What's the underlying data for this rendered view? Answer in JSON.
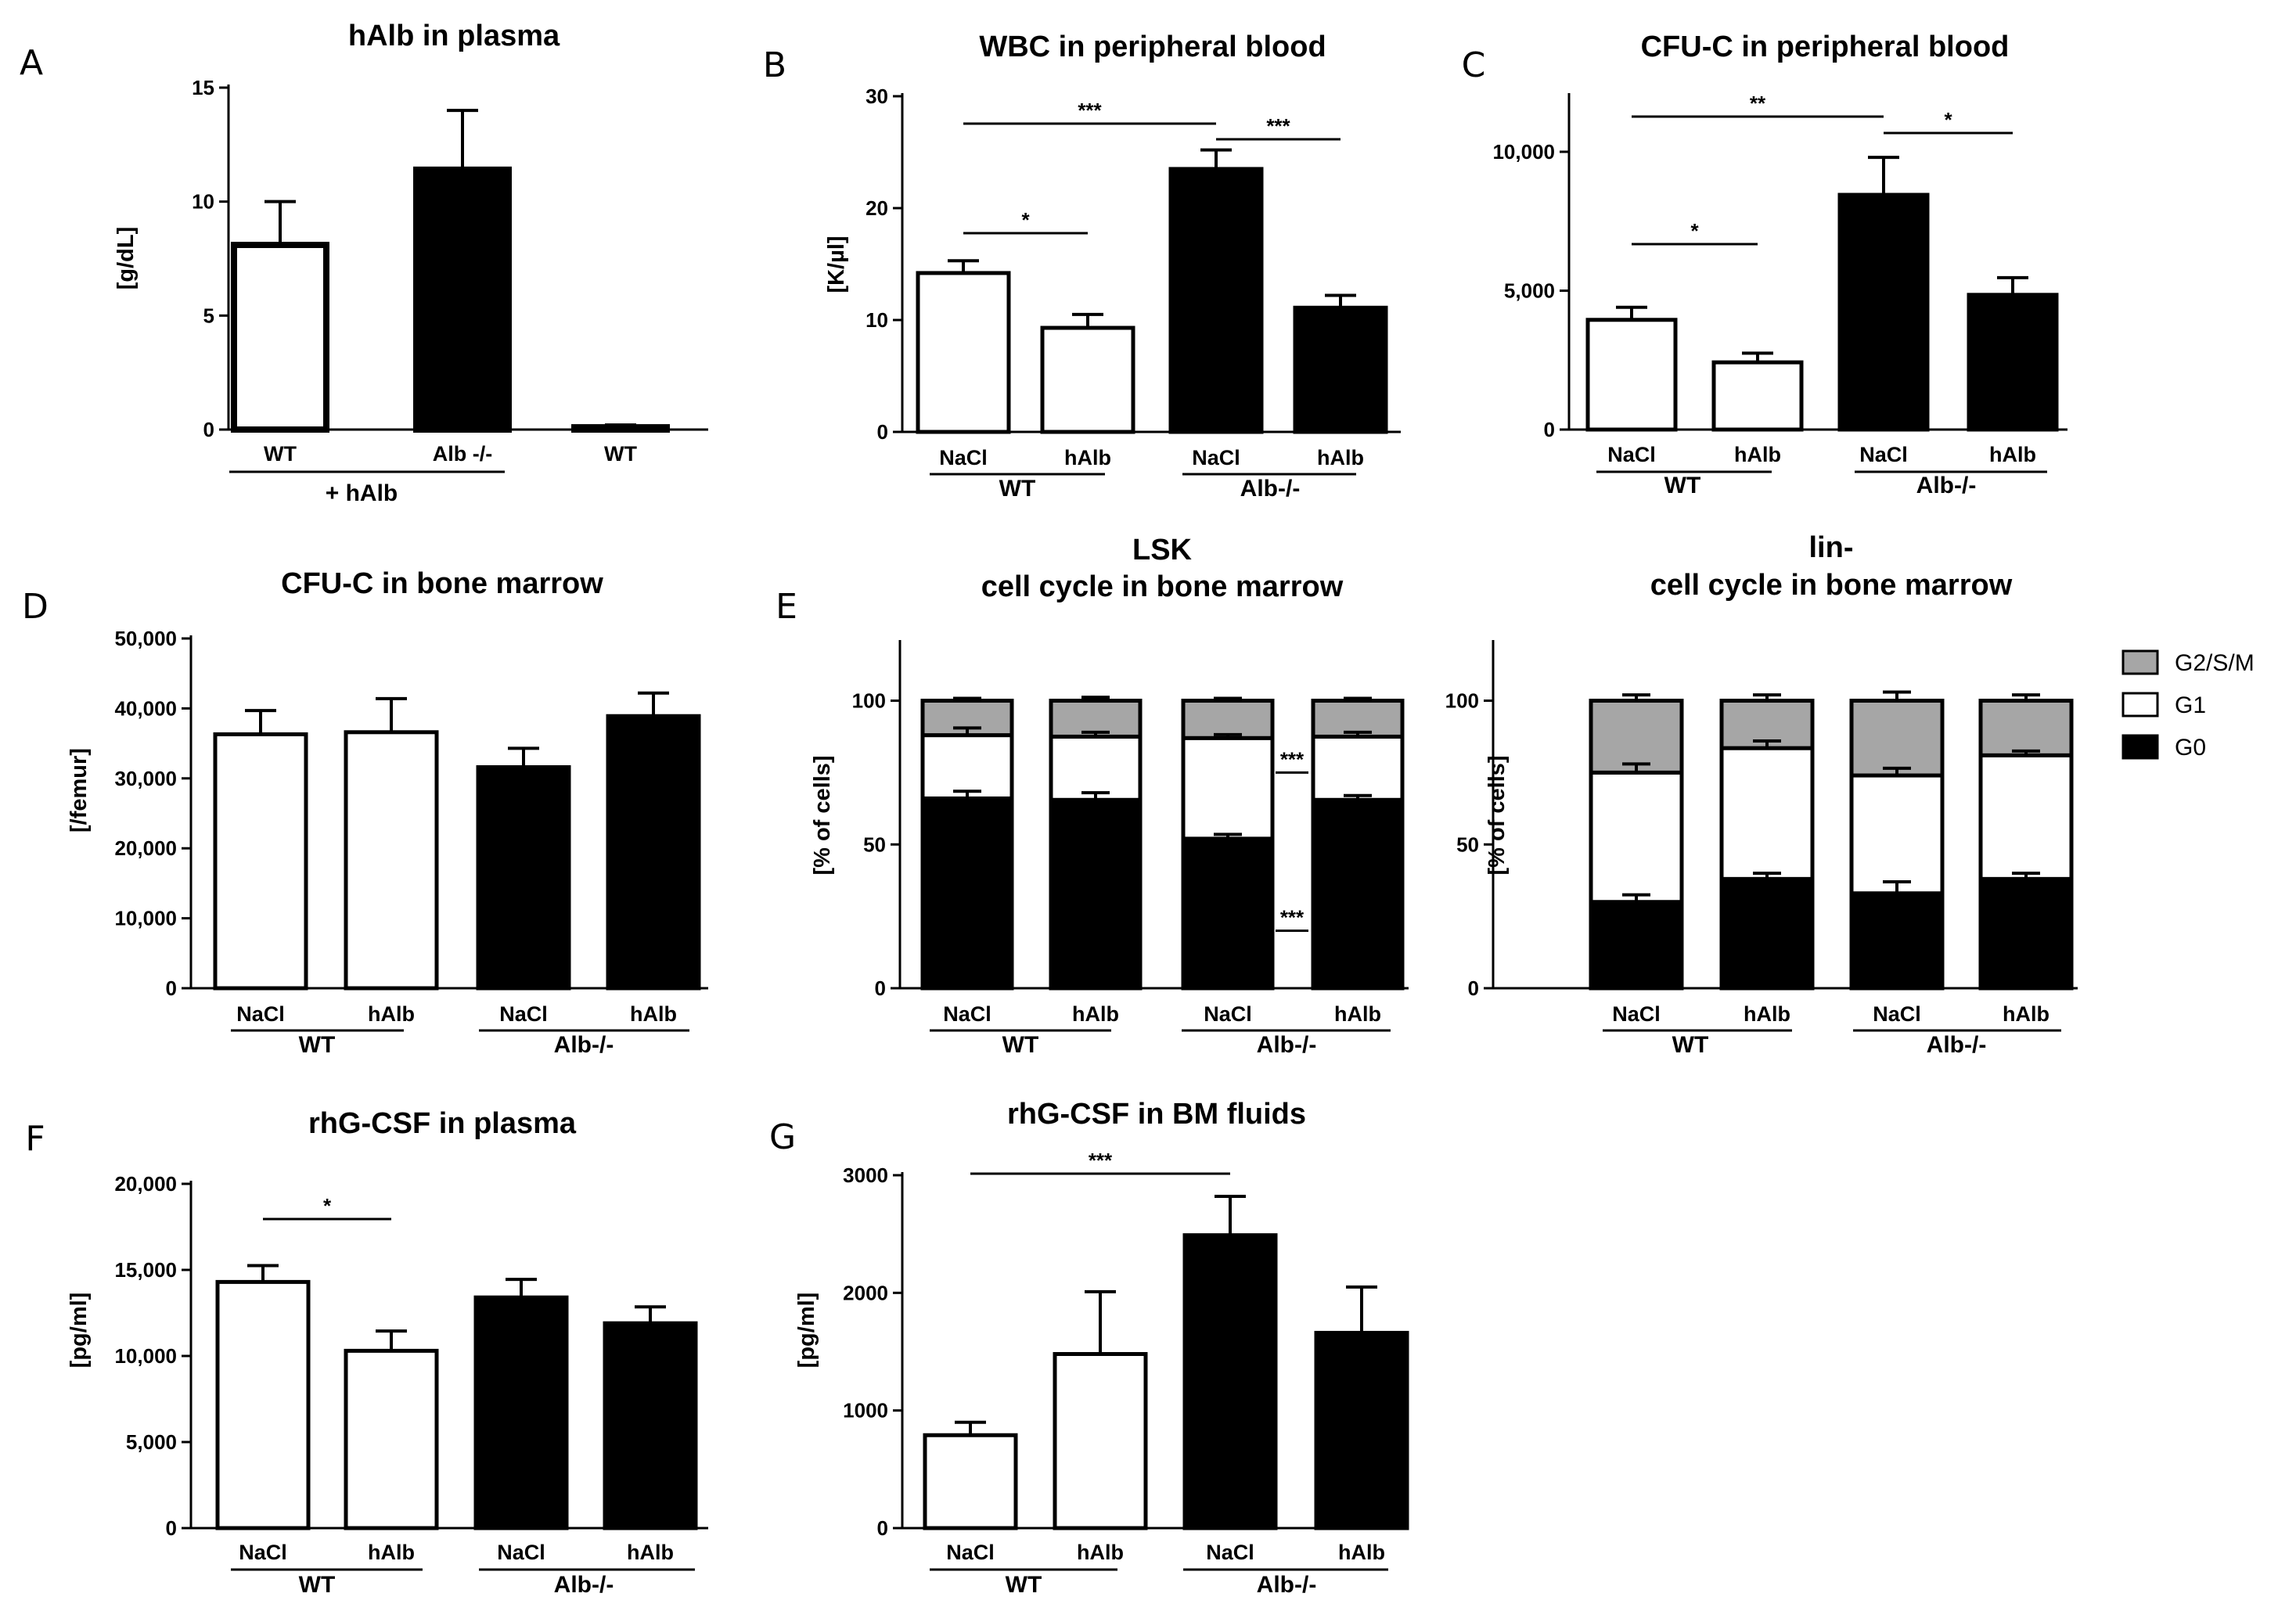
{
  "chart_data": [
    {
      "id": "A",
      "panel_label": "A",
      "type": "bar",
      "title": "hAlb in plasma",
      "ylabel": "[g/dL]",
      "ylim": [
        0,
        15
      ],
      "yticks": [
        "0",
        "5",
        "10",
        "15"
      ],
      "categories": [
        "WT",
        "Alb -/-",
        "WT"
      ],
      "values": [
        8.1,
        11.4,
        0.1
      ],
      "errors": [
        1.9,
        2.6,
        0.1
      ],
      "fills": [
        "white",
        "black",
        "white"
      ],
      "groups": [
        {
          "label": "+ hAlb"
        }
      ],
      "annotations": []
    },
    {
      "id": "B",
      "panel_label": "B",
      "type": "bar",
      "title": "WBC in peripheral blood",
      "ylabel": "[K/µl]",
      "ylim": [
        0,
        30
      ],
      "yticks": [
        "0",
        "10",
        "20",
        "30"
      ],
      "categories": [
        "NaCl",
        "hAlb",
        "NaCl",
        "hAlb"
      ],
      "values": [
        14.2,
        9.3,
        23.5,
        11.1
      ],
      "errors": [
        1.1,
        1.2,
        1.7,
        1.1
      ],
      "fills": [
        "white",
        "white",
        "black",
        "black"
      ],
      "groups": [
        {
          "label": "WT"
        },
        {
          "label": "Alb-/-"
        }
      ],
      "annotations": [
        {
          "text": "*"
        },
        {
          "text": "***"
        },
        {
          "text": "***"
        }
      ]
    },
    {
      "id": "C",
      "panel_label": "C",
      "type": "bar",
      "title": "CFU-C in peripheral blood",
      "ylabel": "",
      "ylim": [
        0,
        12000
      ],
      "yticks": [
        "0",
        "5,000",
        "10,000"
      ],
      "categories": [
        "NaCl",
        "hAlb",
        "NaCl",
        "hAlb"
      ],
      "values": [
        3950,
        2420,
        8450,
        4850
      ],
      "errors": [
        450,
        330,
        1350,
        620
      ],
      "fills": [
        "white",
        "white",
        "black",
        "black"
      ],
      "groups": [
        {
          "label": "WT"
        },
        {
          "label": "Alb-/-"
        }
      ],
      "annotations": [
        {
          "text": "*"
        },
        {
          "text": "**"
        },
        {
          "text": "*"
        }
      ]
    },
    {
      "id": "D",
      "panel_label": "D",
      "type": "bar",
      "title": "CFU-C in bone marrow",
      "ylabel": "[/femur]",
      "ylim": [
        0,
        50000
      ],
      "yticks": [
        "0",
        "10,000",
        "20,000",
        "30,000",
        "40,000",
        "50,000"
      ],
      "categories": [
        "NaCl",
        "hAlb",
        "NaCl",
        "hAlb"
      ],
      "values": [
        36300,
        36600,
        31600,
        38900
      ],
      "errors": [
        3400,
        4800,
        2700,
        3300
      ],
      "fills": [
        "white",
        "white",
        "black",
        "black"
      ],
      "groups": [
        {
          "label": "WT"
        },
        {
          "label": "Alb-/-"
        }
      ],
      "annotations": []
    },
    {
      "id": "E1",
      "panel_label": "E",
      "type": "bar",
      "stacked": true,
      "percent": true,
      "title_lines": [
        "LSK",
        "cell cycle in bone marrow"
      ],
      "ylabel": "[% of cells]",
      "ylim": [
        0,
        120
      ],
      "yticks": [
        "0",
        "50",
        "100"
      ],
      "categories": [
        "NaCl",
        "hAlb",
        "NaCl",
        "hAlb"
      ],
      "series": [
        {
          "name": "G0",
          "values": [
            66,
            65.5,
            52,
            65.5
          ],
          "errors": [
            2.5,
            2.5,
            1.5,
            1.5
          ]
        },
        {
          "name": "G1",
          "values": [
            22,
            22,
            35,
            22
          ],
          "errors": [
            2.5,
            1.5,
            1.2,
            1.5
          ]
        },
        {
          "name": "G2/S/M",
          "values": [
            12,
            12.5,
            13,
            12.5
          ],
          "errors": [
            0.8,
            1.2,
            0.8,
            0.8
          ]
        }
      ],
      "groups": [
        {
          "label": "WT"
        },
        {
          "label": "Alb-/-"
        }
      ],
      "annotations": [
        {
          "text": "***"
        },
        {
          "text": "***"
        }
      ]
    },
    {
      "id": "E2",
      "panel_label": "",
      "type": "bar",
      "stacked": true,
      "percent": true,
      "title_lines": [
        "lin-",
        "cell cycle in bone marrow"
      ],
      "ylabel": "[% of cells]",
      "ylim": [
        0,
        120
      ],
      "yticks": [
        "0",
        "50",
        "100"
      ],
      "categories": [
        "NaCl",
        "hAlb",
        "NaCl",
        "hAlb"
      ],
      "series": [
        {
          "name": "G0",
          "values": [
            30,
            38,
            33,
            38
          ],
          "errors": [
            2.5,
            2,
            4,
            2
          ]
        },
        {
          "name": "G1",
          "values": [
            45,
            45.5,
            41,
            43
          ],
          "errors": [
            3,
            2.5,
            2.5,
            1.5
          ]
        },
        {
          "name": "G2/S/M",
          "values": [
            25,
            16.5,
            26,
            19
          ],
          "errors": [
            2,
            2,
            3,
            2
          ]
        }
      ],
      "groups": [
        {
          "label": "WT"
        },
        {
          "label": "Alb-/-"
        }
      ],
      "legend": [
        "G2/S/M",
        "G1",
        "G0"
      ],
      "annotations": []
    },
    {
      "id": "F",
      "panel_label": "F",
      "type": "bar",
      "title": "rhG-CSF in plasma",
      "ylabel": "[pg/ml]",
      "ylim": [
        0,
        20000
      ],
      "yticks": [
        "0",
        "5,000",
        "10,000",
        "15,000",
        "20,000"
      ],
      "categories": [
        "NaCl",
        "hAlb",
        "NaCl",
        "hAlb"
      ],
      "values": [
        14300,
        10300,
        13400,
        11900
      ],
      "errors": [
        950,
        1150,
        1050,
        950
      ],
      "fills": [
        "white",
        "white",
        "black",
        "black"
      ],
      "groups": [
        {
          "label": "WT"
        },
        {
          "label": "Alb-/-"
        }
      ],
      "annotations": [
        {
          "text": "*"
        }
      ]
    },
    {
      "id": "G",
      "panel_label": "G",
      "type": "bar",
      "title": "rhG-CSF in BM fluids",
      "ylabel": "[pg/ml]",
      "ylim": [
        0,
        3000
      ],
      "yticks": [
        "0",
        "1000",
        "2000",
        "3000"
      ],
      "categories": [
        "NaCl",
        "hAlb",
        "NaCl",
        "hAlb"
      ],
      "values": [
        790,
        1480,
        2490,
        1660
      ],
      "errors": [
        110,
        530,
        330,
        390
      ],
      "fills": [
        "white",
        "white",
        "black",
        "black"
      ],
      "groups": [
        {
          "label": "WT"
        },
        {
          "label": "Alb-/-"
        }
      ],
      "annotations": [
        {
          "text": "***"
        }
      ]
    }
  ]
}
